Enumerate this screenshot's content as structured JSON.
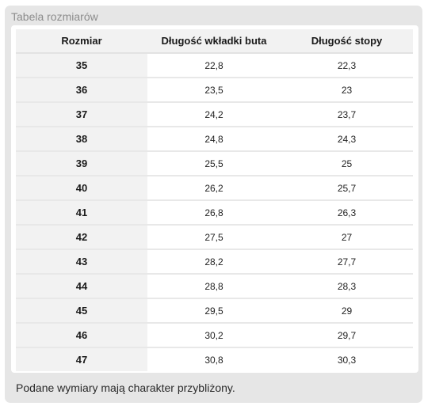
{
  "panel": {
    "title": "Tabela rozmiarów"
  },
  "table": {
    "headers": {
      "size": "Rozmiar",
      "insole_length": "Długość wkładki buta",
      "foot_length": "Długość stopy"
    },
    "rows": [
      {
        "size": "35",
        "insole_length": "22,8",
        "foot_length": "22,3"
      },
      {
        "size": "36",
        "insole_length": "23,5",
        "foot_length": "23"
      },
      {
        "size": "37",
        "insole_length": "24,2",
        "foot_length": "23,7"
      },
      {
        "size": "38",
        "insole_length": "24,8",
        "foot_length": "24,3"
      },
      {
        "size": "39",
        "insole_length": "25,5",
        "foot_length": "25"
      },
      {
        "size": "40",
        "insole_length": "26,2",
        "foot_length": "25,7"
      },
      {
        "size": "41",
        "insole_length": "26,8",
        "foot_length": "26,3"
      },
      {
        "size": "42",
        "insole_length": "27,5",
        "foot_length": "27"
      },
      {
        "size": "43",
        "insole_length": "28,2",
        "foot_length": "27,7"
      },
      {
        "size": "44",
        "insole_length": "28,8",
        "foot_length": "28,3"
      },
      {
        "size": "45",
        "insole_length": "29,5",
        "foot_length": "29"
      },
      {
        "size": "46",
        "insole_length": "30,2",
        "foot_length": "29,7"
      },
      {
        "size": "47",
        "insole_length": "30,8",
        "foot_length": "30,3"
      }
    ]
  },
  "footnote": "Podane wymiary mają charakter przybliżony."
}
